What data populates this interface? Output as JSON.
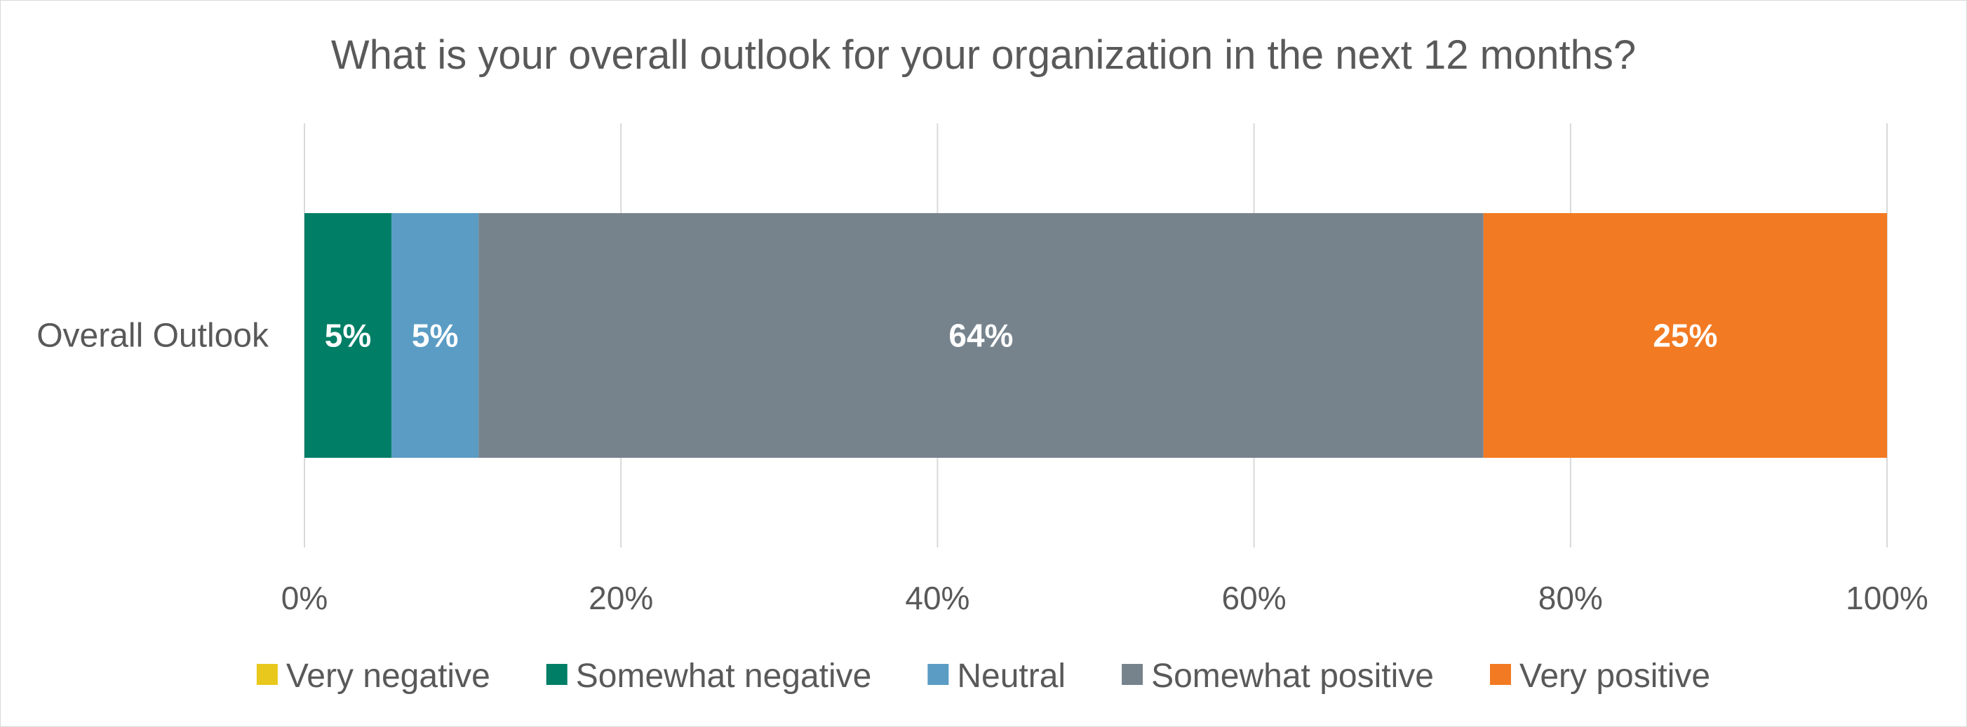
{
  "chart_data": {
    "type": "bar",
    "orientation": "horizontal",
    "stacked": "percent",
    "title": "What is your overall outlook for your organization in the next 12 months?",
    "categories": [
      "Overall Outlook"
    ],
    "series": [
      {
        "name": "Very negative",
        "values": [
          0
        ],
        "label": "",
        "color": "#E8C81C"
      },
      {
        "name": "Somewhat negative",
        "values": [
          5.5
        ],
        "label": "5%",
        "color": "#007E66"
      },
      {
        "name": "Neutral",
        "values": [
          5.5
        ],
        "label": "5%",
        "color": "#5A9CC4"
      },
      {
        "name": "Somewhat positive",
        "values": [
          63.5
        ],
        "label": "64%",
        "color": "#76838D"
      },
      {
        "name": "Very positive",
        "values": [
          25.5
        ],
        "label": "25%",
        "color": "#F27A22"
      }
    ],
    "xlim": [
      0,
      100
    ],
    "xticks": [
      0,
      20,
      40,
      60,
      80,
      100
    ],
    "xtick_labels": [
      "0%",
      "20%",
      "40%",
      "60%",
      "80%",
      "100%"
    ],
    "grid": "vertical",
    "legend_position": "bottom"
  }
}
